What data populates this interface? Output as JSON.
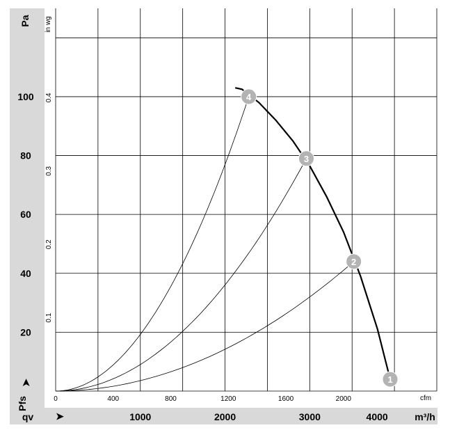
{
  "chart_data": {
    "type": "line",
    "primary_y": {
      "unit": "Pa",
      "ticks": [
        20,
        40,
        60,
        80,
        100
      ],
      "range": [
        0,
        130
      ]
    },
    "secondary_y": {
      "unit": "in wg",
      "ticks": [
        "0.1",
        "0.2",
        "0.3",
        "0.4"
      ]
    },
    "primary_x": {
      "unit": "m³/h",
      "ticks": [
        1000,
        2000,
        3000,
        4000
      ],
      "range": [
        0,
        4500
      ]
    },
    "secondary_x": {
      "unit": "cfm",
      "ticks": [
        0,
        400,
        800,
        1200,
        1600,
        2000
      ]
    },
    "y_symbol": "Pfs",
    "x_symbol": "qv",
    "arrow": "➤",
    "grid": true,
    "fan_curve": {
      "x": [
        2120,
        2200,
        2400,
        2600,
        2800,
        3000,
        3200,
        3400,
        3600,
        3800,
        3950
      ],
      "y": [
        103,
        102.5,
        98,
        92,
        85,
        76.5,
        66,
        54,
        39,
        21,
        4
      ]
    },
    "operating_points": [
      {
        "label": "1",
        "x": 3950,
        "y": 4
      },
      {
        "label": "2",
        "x": 3520,
        "y": 44
      },
      {
        "label": "3",
        "x": 2960,
        "y": 79
      },
      {
        "label": "4",
        "x": 2280,
        "y": 100
      }
    ],
    "system_curves": [
      {
        "to_point": "2"
      },
      {
        "to_point": "3"
      },
      {
        "to_point": "4"
      }
    ]
  }
}
